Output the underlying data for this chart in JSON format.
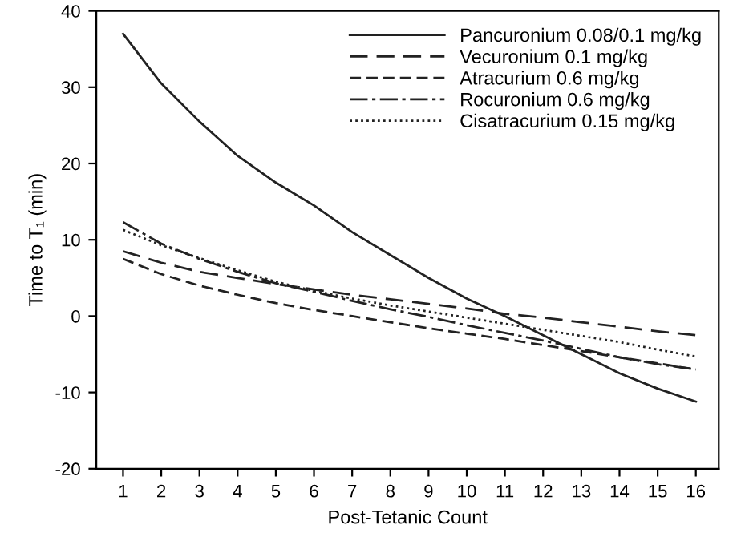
{
  "chart_data": {
    "type": "line",
    "xlabel": "Post-Tetanic Count",
    "ylabel": "Time to T₁ (min)",
    "x": [
      1,
      2,
      3,
      4,
      5,
      6,
      7,
      8,
      9,
      10,
      11,
      12,
      13,
      14,
      15,
      16
    ],
    "xlim": [
      0.3,
      16.6
    ],
    "xticks": [
      1,
      2,
      3,
      4,
      5,
      6,
      7,
      8,
      9,
      10,
      11,
      12,
      13,
      14,
      15,
      16
    ],
    "ylim": [
      -20,
      40
    ],
    "yticks": [
      -20,
      -10,
      0,
      10,
      20,
      30,
      40
    ],
    "grid": false,
    "legend": "top right",
    "marker": "none",
    "series": [
      {
        "name": "Pancuronium 0.08/0.1 mg/kg",
        "color": "#222222",
        "line_style": "solid",
        "values": [
          37,
          30.5,
          25.5,
          21,
          17.5,
          14.5,
          11,
          8,
          5,
          2.3,
          0,
          -2.5,
          -5,
          -7.5,
          -9.5,
          -11.2
        ]
      },
      {
        "name": "Vecuronium 0.1 mg/kg",
        "color": "#222222",
        "line_style": "longdash",
        "values": [
          8.5,
          7,
          5.8,
          5,
          4.2,
          3.5,
          2.8,
          2.2,
          1.6,
          1,
          0.3,
          -0.2,
          -0.8,
          -1.4,
          -2,
          -2.5
        ]
      },
      {
        "name": "Atracurium 0.6 mg/kg",
        "color": "#222222",
        "line_style": "dashed",
        "values": [
          7.5,
          5.5,
          4,
          2.8,
          1.7,
          0.8,
          0,
          -0.8,
          -1.6,
          -2.3,
          -3,
          -3.8,
          -4.6,
          -5.4,
          -6.2,
          -7
        ]
      },
      {
        "name": "Rocuronium 0.6 mg/kg",
        "color": "#222222",
        "line_style": "dashdot",
        "values": [
          12.3,
          9.5,
          7.5,
          5.8,
          4.3,
          3.2,
          2,
          0.9,
          -0.1,
          -1.2,
          -2.2,
          -3.2,
          -4.3,
          -5.4,
          -6.3,
          -7
        ]
      },
      {
        "name": "Cisatracurium 0.15 mg/kg",
        "color": "#222222",
        "line_style": "dotted",
        "values": [
          11.3,
          9.3,
          7.6,
          6,
          4.5,
          3.3,
          2.3,
          1.4,
          0.6,
          -0.2,
          -1,
          -1.8,
          -2.6,
          -3.4,
          -4.4,
          -5.3
        ]
      }
    ]
  }
}
